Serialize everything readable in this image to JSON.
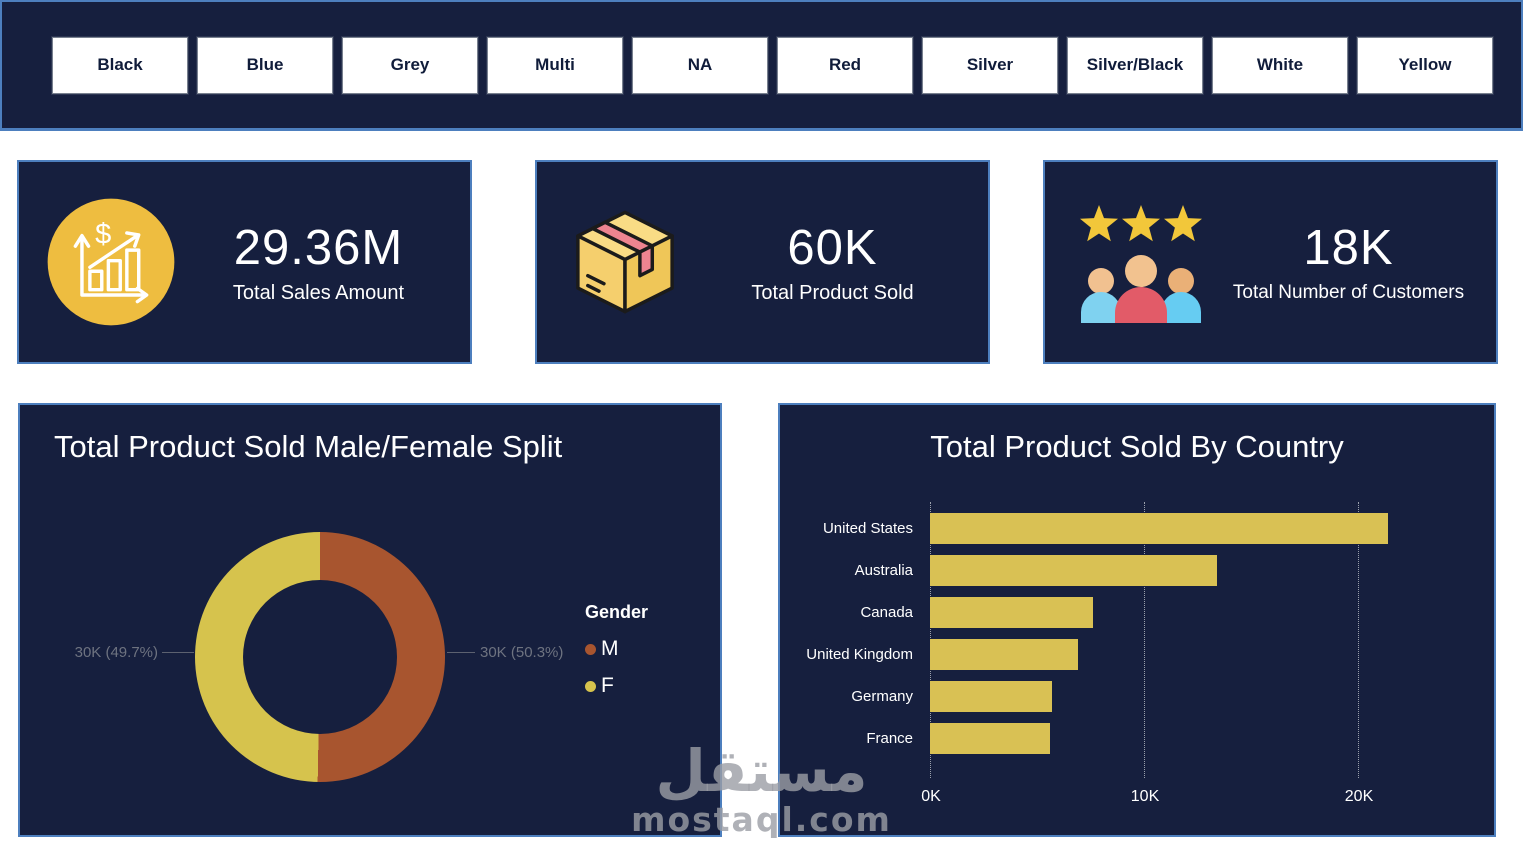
{
  "slicer": {
    "options": [
      "Black",
      "Blue",
      "Grey",
      "Multi",
      "NA",
      "Red",
      "Silver",
      "Silver/Black",
      "White",
      "Yellow"
    ]
  },
  "kpis": [
    {
      "value": "29.36M",
      "label": "Total Sales Amount",
      "icon": "sales-growth-icon"
    },
    {
      "value": "60K",
      "label": "Total Product Sold",
      "icon": "product-box-icon"
    },
    {
      "value": "18K",
      "label": "Total Number of Customers",
      "icon": "customers-stars-icon"
    }
  ],
  "colors": {
    "panel_bg": "#161f3e",
    "panel_border": "#4d7fbe",
    "kpi_icon_yellow": "#eebd40",
    "star_yellow": "#f2c73a",
    "callout_text": "#6e7380"
  },
  "chart_data": [
    {
      "type": "pie",
      "subtype": "donut",
      "title": "Total Product Sold Male/Female Split",
      "legend_title": "Gender",
      "legend_position": "right",
      "slices": [
        {
          "name": "M",
          "value_label": "30K",
          "pct": 50.3,
          "color": "#a8552f",
          "callout": "30K (50.3%)"
        },
        {
          "name": "F",
          "value_label": "30K",
          "pct": 49.7,
          "color": "#d6c34d",
          "callout": "30K (49.7%)"
        }
      ]
    },
    {
      "type": "bar",
      "orientation": "horizontal",
      "title": "Total Product Sold By Country",
      "categories": [
        "United States",
        "Australia",
        "Canada",
        "United Kingdom",
        "Germany",
        "France"
      ],
      "values": [
        21.4,
        13.4,
        7.6,
        6.9,
        5.7,
        5.6
      ],
      "unit": "K",
      "x_ticks": [
        "0K",
        "10K",
        "20K"
      ],
      "x_tick_values": [
        0,
        10,
        20
      ],
      "xlim": [
        0,
        26
      ],
      "grid": "dotted",
      "bar_color": "#d9c154"
    }
  ],
  "watermark": {
    "arabic": "مستقل",
    "latin": "mostaql.com"
  }
}
